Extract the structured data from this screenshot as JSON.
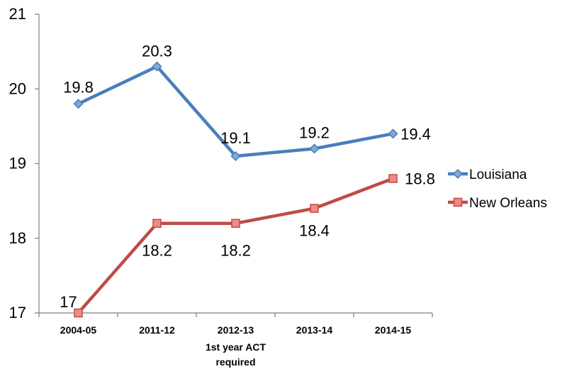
{
  "chart_data": {
    "type": "line",
    "categories": [
      "2004-05",
      "2011-12",
      "2012-13",
      "2013-14",
      "2014-15"
    ],
    "category_sublabels": [
      "",
      "",
      "1st year ACT\nrequired",
      "",
      ""
    ],
    "series": [
      {
        "name": "Louisiana",
        "values": [
          19.8,
          20.3,
          19.1,
          19.2,
          19.4
        ],
        "labels": [
          "19.8",
          "20.3",
          "19.1",
          "19.2",
          "19.4"
        ],
        "color": "#4a7ebb",
        "marker": "diamond"
      },
      {
        "name": "New Orleans",
        "values": [
          17,
          18.2,
          18.2,
          18.4,
          18.8
        ],
        "labels": [
          "17",
          "18.2",
          "18.2",
          "18.4",
          "18.8"
        ],
        "color": "#be4b48",
        "marker": "square"
      }
    ],
    "ylim": [
      17,
      21
    ],
    "yticks": [
      17,
      18,
      19,
      20,
      21
    ],
    "ytick_labels": [
      "17",
      "18",
      "19",
      "20",
      "21"
    ],
    "grid": false,
    "legend": "right"
  }
}
